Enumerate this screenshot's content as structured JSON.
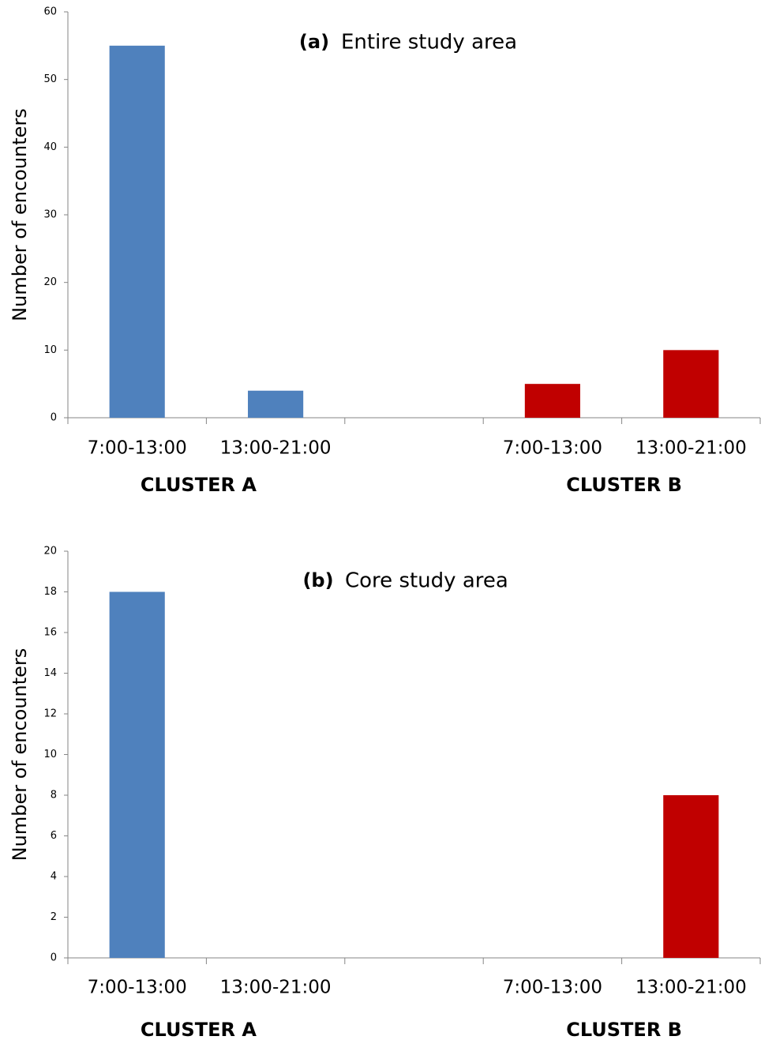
{
  "chart_data": [
    {
      "type": "bar",
      "label": "(a)",
      "title": "Entire study area",
      "y_label": "Number of encounters",
      "categories": [
        "7:00-13:00",
        "13:00-21:00",
        null,
        "7:00-13:00",
        "13:00-21:00"
      ],
      "values": [
        55,
        4,
        null,
        5,
        10
      ],
      "colors": [
        "#4f81bd",
        "#4f81bd",
        null,
        "#c00000",
        "#c00000"
      ],
      "groups": [
        {
          "name": "CLUSTER A",
          "color": "#17375e"
        },
        {
          "name": "CLUSTER B",
          "color": "#c00000"
        }
      ],
      "ylim": [
        0,
        60
      ],
      "yticks": [
        0,
        10,
        20,
        30,
        40,
        50,
        60
      ],
      "grid": false
    },
    {
      "type": "bar",
      "label": "(b)",
      "title": "Core study area",
      "y_label": "Number of encounters",
      "categories": [
        "7:00-13:00",
        "13:00-21:00",
        null,
        "7:00-13:00",
        "13:00-21:00"
      ],
      "values": [
        18,
        0,
        null,
        0,
        8
      ],
      "colors": [
        "#4f81bd",
        "#4f81bd",
        null,
        "#c00000",
        "#c00000"
      ],
      "groups": [
        {
          "name": "CLUSTER A",
          "color": "#17375e"
        },
        {
          "name": "CLUSTER B",
          "color": "#c00000"
        }
      ],
      "ylim": [
        0,
        20
      ],
      "yticks": [
        0,
        2,
        4,
        6,
        8,
        10,
        12,
        14,
        16,
        18,
        20
      ],
      "grid": false
    }
  ]
}
